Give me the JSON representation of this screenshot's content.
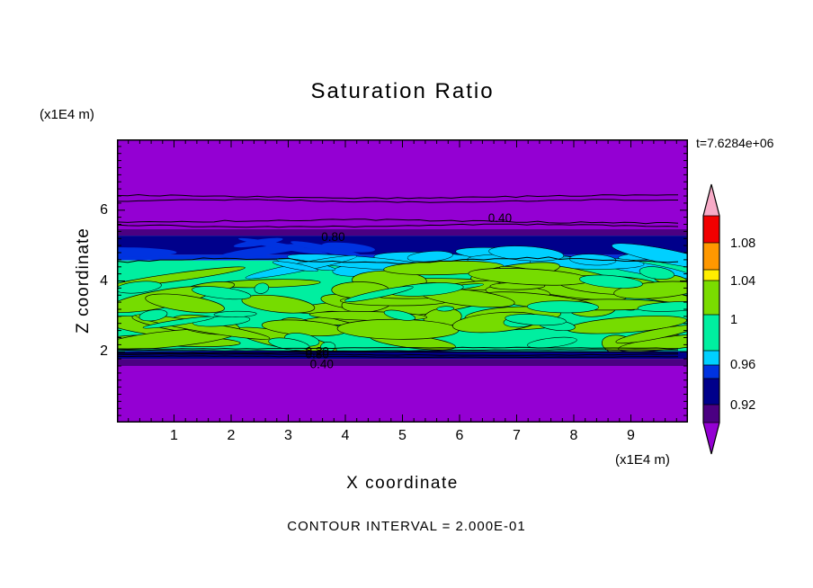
{
  "title": "Saturation Ratio",
  "time_label": "t=7.6284e+06",
  "contour_note": "CONTOUR INTERVAL = 2.000E-01",
  "axes": {
    "x": {
      "label": "X coordinate",
      "unit": "(x1E4 m)",
      "ticks": [
        "1",
        "2",
        "3",
        "4",
        "5",
        "6",
        "7",
        "8",
        "9"
      ],
      "range": [
        0,
        10
      ]
    },
    "z": {
      "label": "Z coordinate",
      "unit": "(x1E4 m)",
      "ticks": [
        "2",
        "4",
        "6"
      ],
      "range": [
        0,
        8
      ]
    }
  },
  "colorbar": {
    "tick_labels": [
      {
        "text": "1.08",
        "y": 270
      },
      {
        "text": "1.04",
        "y": 312
      },
      {
        "text": "1",
        "y": 355
      },
      {
        "text": "0.96",
        "y": 405
      },
      {
        "text": "0.92",
        "y": 450
      }
    ],
    "segments": [
      {
        "name": "pink",
        "color": "#F7ABC7",
        "from": 205,
        "to": 240
      },
      {
        "name": "red",
        "color": "#F20000",
        "from": 240,
        "to": 270
      },
      {
        "name": "orange",
        "color": "#FF9800",
        "from": 270,
        "to": 300
      },
      {
        "name": "yellow",
        "color": "#FFEE00",
        "from": 300,
        "to": 312
      },
      {
        "name": "greenyellow",
        "color": "#7ADC00",
        "from": 312,
        "to": 350
      },
      {
        "name": "springgreen",
        "color": "#00EFA0",
        "from": 350,
        "to": 390
      },
      {
        "name": "cyan",
        "color": "#00D0FF",
        "from": 390,
        "to": 406
      },
      {
        "name": "blue",
        "color": "#0033E0",
        "from": 406,
        "to": 421
      },
      {
        "name": "navy",
        "color": "#00008B",
        "from": 421,
        "to": 450
      },
      {
        "name": "indigo",
        "color": "#4B0082",
        "from": 450,
        "to": 470
      },
      {
        "name": "purple",
        "color": "#9400D3",
        "from": 470,
        "to": 505
      }
    ]
  },
  "chart_data": {
    "type": "heatmap",
    "title": "Saturation Ratio",
    "xlabel": "X coordinate (x1E4 m)",
    "ylabel": "Z coordinate (x1E4 m)",
    "x_range": [
      0,
      10
    ],
    "z_range": [
      0,
      8
    ],
    "time": "t=7.6284e+06",
    "contour_interval": 0.2,
    "colorbar_values": [
      1.08,
      1.04,
      1,
      0.96,
      0.92
    ],
    "bands": [
      {
        "name": "purple-top",
        "z_from": 8.0,
        "z_to": 5.46,
        "color": "#9400D3"
      },
      {
        "name": "indigo-top",
        "z_from": 5.46,
        "z_to": 5.28,
        "color": "#4B0082"
      },
      {
        "name": "navy-top",
        "z_from": 5.28,
        "z_to": 4.74,
        "color": "#00008B"
      },
      {
        "name": "blue-top",
        "z_from": 4.74,
        "z_to": 4.58,
        "color": "#0033E0"
      },
      {
        "name": "springgreen",
        "z_from": 4.58,
        "z_to": 2.02,
        "color": "#00EFA0"
      },
      {
        "name": "navy-bottom",
        "z_from": 2.02,
        "z_to": 1.8,
        "color": "#00008B"
      },
      {
        "name": "indigo-bottom",
        "z_from": 1.8,
        "z_to": 1.6,
        "color": "#4B0082"
      },
      {
        "name": "purple-bottom",
        "z_from": 1.6,
        "z_to": 0.0,
        "color": "#9400D3"
      }
    ],
    "contour_lines": [
      {
        "z": 6.38,
        "amp": 1.6,
        "wl": 90
      },
      {
        "z": 6.26,
        "amp": 1.3,
        "wl": 70
      },
      {
        "z": 5.68,
        "amp": 1.8,
        "wl": 110
      },
      {
        "z": 5.56,
        "amp": 1.4,
        "wl": 80
      },
      {
        "z": 4.58,
        "amp": 2.6,
        "wl": 55
      },
      {
        "z": 2.1,
        "amp": 0.7,
        "wl": 120
      },
      {
        "z": 2.04,
        "amp": 0.6,
        "wl": 100
      },
      {
        "z": 1.98,
        "amp": 0.6,
        "wl": 140
      },
      {
        "z": 1.92,
        "amp": 0.7,
        "wl": 90
      },
      {
        "z": 1.86,
        "amp": 0.6,
        "wl": 110
      }
    ],
    "contour_labels": [
      {
        "text": "0.40",
        "x": 6.5,
        "z": 5.78
      },
      {
        "text": "0.80",
        "x": 3.58,
        "z": 5.25
      },
      {
        "text": "0.20",
        "x": 3.3,
        "z": 2.02
      },
      {
        "text": "0.80",
        "x": 3.3,
        "z": 1.94
      },
      {
        "text": "0.40",
        "x": 3.38,
        "z": 1.66
      }
    ],
    "texture": {
      "seed": 7,
      "blob_color": "#76DC00",
      "blob_count": 62,
      "hole_count": 24,
      "blob_z_range": [
        2.12,
        4.4
      ],
      "cyan_color": "#00D0FF",
      "cyan_count": 15,
      "cyan_z_range": [
        4.3,
        4.78
      ],
      "blue_color": "#0033E0",
      "blue_count": 6,
      "blue_z_range": [
        4.8,
        5.12
      ]
    }
  }
}
